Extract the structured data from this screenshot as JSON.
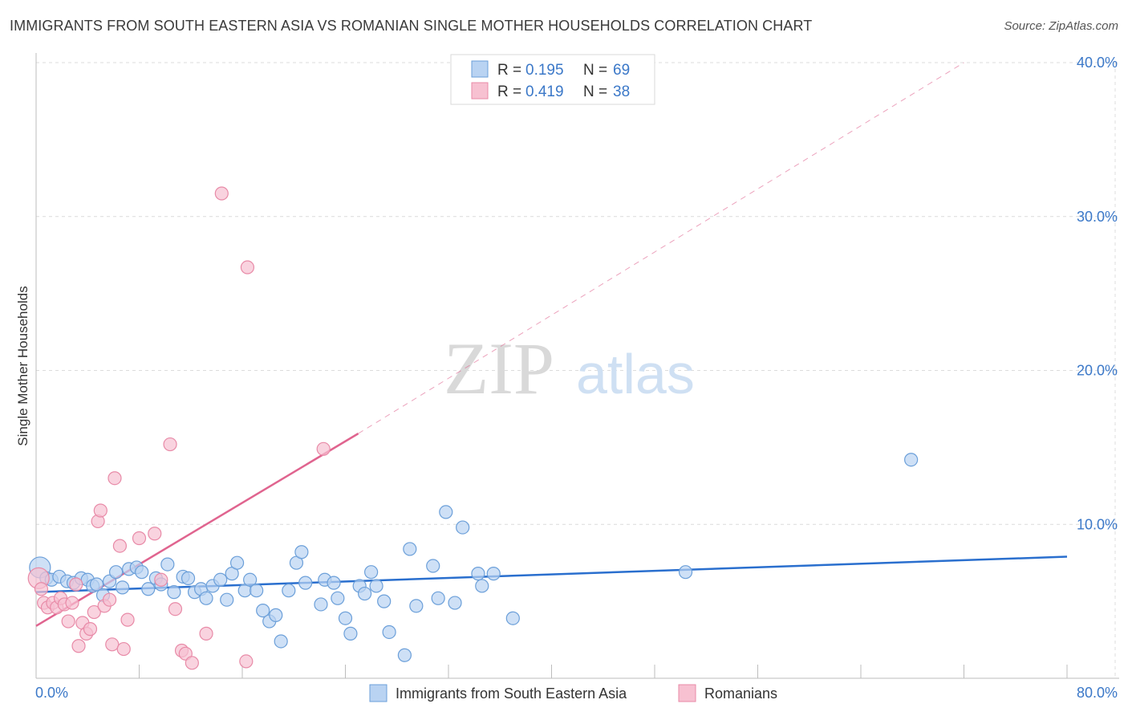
{
  "title": "IMMIGRANTS FROM SOUTH EASTERN ASIA VS ROMANIAN SINGLE MOTHER HOUSEHOLDS CORRELATION CHART",
  "source": "Source: ZipAtlas.com",
  "watermark": {
    "zip": "ZIP",
    "atlas": "atlas"
  },
  "colors": {
    "blue_fill": "#b9d3f2",
    "blue_stroke": "#6b9fd9",
    "blue_line": "#2a6fce",
    "pink_fill": "#f7c1d1",
    "pink_stroke": "#e88aa7",
    "pink_line": "#e0648f",
    "tick_text": "#3b78c8",
    "grid": "#dcdcdc"
  },
  "chart_data": {
    "type": "scatter",
    "title": "IMMIGRANTS FROM SOUTH EASTERN ASIA VS ROMANIAN SINGLE MOTHER HOUSEHOLDS CORRELATION CHART",
    "xlabel": "",
    "ylabel": "Single Mother Households",
    "xlim": [
      0,
      80
    ],
    "ylim": [
      0,
      40
    ],
    "x_tick_labels": [
      {
        "value": 0,
        "label": "0.0%"
      },
      {
        "value": 80,
        "label": "80.0%"
      }
    ],
    "y_tick_labels": [
      {
        "value": 10,
        "label": "10.0%"
      },
      {
        "value": 20,
        "label": "20.0%"
      },
      {
        "value": 30,
        "label": "30.0%"
      },
      {
        "value": 40,
        "label": "40.0%"
      }
    ],
    "legend": [
      {
        "name": "Immigrants from South Eastern Asia",
        "r_label": "R =",
        "r": "0.195",
        "n_label": "N =",
        "n": "69"
      },
      {
        "name": "Romanians",
        "r_label": "R =",
        "r": "0.419",
        "n_label": "N =",
        "n": "38"
      }
    ],
    "series": [
      {
        "name": "Immigrants from South Eastern Asia",
        "color": "blue",
        "trend": {
          "x0": 0,
          "y0": 5.6,
          "x1": 80,
          "y1": 7.9,
          "dashed_extension": false
        },
        "points": [
          [
            0.3,
            7.2
          ],
          [
            0.8,
            6.5
          ],
          [
            1.2,
            6.4
          ],
          [
            1.8,
            6.6
          ],
          [
            2.4,
            6.3
          ],
          [
            2.9,
            6.2
          ],
          [
            3.5,
            6.5
          ],
          [
            4.0,
            6.4
          ],
          [
            4.4,
            6.0
          ],
          [
            4.7,
            6.1
          ],
          [
            5.2,
            5.4
          ],
          [
            5.7,
            6.3
          ],
          [
            6.2,
            6.9
          ],
          [
            6.7,
            5.9
          ],
          [
            7.2,
            7.1
          ],
          [
            7.8,
            7.2
          ],
          [
            8.2,
            6.9
          ],
          [
            8.7,
            5.8
          ],
          [
            9.3,
            6.5
          ],
          [
            9.7,
            6.1
          ],
          [
            10.2,
            7.4
          ],
          [
            10.7,
            5.6
          ],
          [
            11.4,
            6.6
          ],
          [
            11.8,
            6.5
          ],
          [
            12.3,
            5.6
          ],
          [
            12.8,
            5.8
          ],
          [
            13.2,
            5.2
          ],
          [
            13.7,
            6.0
          ],
          [
            14.3,
            6.4
          ],
          [
            14.8,
            5.1
          ],
          [
            15.2,
            6.8
          ],
          [
            15.6,
            7.5
          ],
          [
            16.2,
            5.7
          ],
          [
            16.6,
            6.4
          ],
          [
            17.1,
            5.7
          ],
          [
            17.6,
            4.4
          ],
          [
            18.1,
            3.7
          ],
          [
            18.6,
            4.1
          ],
          [
            19.0,
            2.4
          ],
          [
            19.6,
            5.7
          ],
          [
            20.2,
            7.5
          ],
          [
            20.6,
            8.2
          ],
          [
            20.9,
            6.2
          ],
          [
            22.1,
            4.8
          ],
          [
            22.4,
            6.4
          ],
          [
            23.1,
            6.2
          ],
          [
            23.4,
            5.2
          ],
          [
            24.0,
            3.9
          ],
          [
            24.4,
            2.9
          ],
          [
            25.1,
            6.0
          ],
          [
            25.5,
            5.5
          ],
          [
            26.0,
            6.9
          ],
          [
            26.4,
            6.0
          ],
          [
            27.0,
            5.0
          ],
          [
            27.4,
            3.0
          ],
          [
            28.6,
            1.5
          ],
          [
            29.0,
            8.4
          ],
          [
            29.5,
            4.7
          ],
          [
            30.8,
            7.3
          ],
          [
            31.2,
            5.2
          ],
          [
            31.8,
            10.8
          ],
          [
            32.5,
            4.9
          ],
          [
            33.1,
            9.8
          ],
          [
            34.3,
            6.8
          ],
          [
            34.6,
            6.0
          ],
          [
            35.5,
            6.8
          ],
          [
            37.0,
            3.9
          ],
          [
            50.4,
            6.9
          ],
          [
            67.9,
            14.2
          ]
        ]
      },
      {
        "name": "Romanians",
        "color": "pink",
        "trend": {
          "x0": 0,
          "y0": 3.4,
          "x1": 25,
          "y1": 15.9,
          "dashed_to": [
            72,
            40
          ]
        },
        "points": [
          [
            0.2,
            6.5
          ],
          [
            0.6,
            4.9
          ],
          [
            0.9,
            4.6
          ],
          [
            1.3,
            4.9
          ],
          [
            1.6,
            4.6
          ],
          [
            1.9,
            5.2
          ],
          [
            2.2,
            4.8
          ],
          [
            2.5,
            3.7
          ],
          [
            2.8,
            4.9
          ],
          [
            3.1,
            6.1
          ],
          [
            3.3,
            2.1
          ],
          [
            3.6,
            3.6
          ],
          [
            3.9,
            2.9
          ],
          [
            4.2,
            3.2
          ],
          [
            4.5,
            4.3
          ],
          [
            4.8,
            10.2
          ],
          [
            5.0,
            10.9
          ],
          [
            5.3,
            4.7
          ],
          [
            5.7,
            5.1
          ],
          [
            5.9,
            2.2
          ],
          [
            6.1,
            13.0
          ],
          [
            6.5,
            8.6
          ],
          [
            6.8,
            1.9
          ],
          [
            7.1,
            3.8
          ],
          [
            8.0,
            9.1
          ],
          [
            9.2,
            9.4
          ],
          [
            9.7,
            6.4
          ],
          [
            10.4,
            15.2
          ],
          [
            10.8,
            4.5
          ],
          [
            11.3,
            1.8
          ],
          [
            11.6,
            1.6
          ],
          [
            12.1,
            1.0
          ],
          [
            13.2,
            2.9
          ],
          [
            14.4,
            31.5
          ],
          [
            16.3,
            1.1
          ],
          [
            16.4,
            26.7
          ],
          [
            22.3,
            14.9
          ],
          [
            0.4,
            5.8
          ]
        ]
      }
    ]
  },
  "bottom_legend": [
    "Immigrants from South Eastern Asia",
    "Romanians"
  ]
}
